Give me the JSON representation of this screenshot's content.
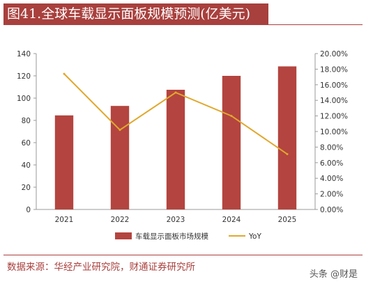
{
  "header": {
    "title": "图41.全球车载显示面板规模预测(亿美元)"
  },
  "footer": {
    "source": "数据来源：华经产业研究院，财通证券研究所",
    "watermark": "头条 @财是"
  },
  "colors": {
    "bar": "#b4443f",
    "line": "#e0a82e",
    "brand": "#a8403d"
  },
  "chart_data": {
    "type": "bar",
    "categories": [
      "2021",
      "2022",
      "2023",
      "2024",
      "2025"
    ],
    "series": [
      {
        "name": "车载显示面板市场规模",
        "type": "bar",
        "axis": "left",
        "values": [
          84.5,
          93,
          107.5,
          120,
          128.5
        ]
      },
      {
        "name": "YoY",
        "type": "line",
        "axis": "right",
        "values": [
          0.174,
          0.102,
          0.15,
          0.12,
          0.071
        ]
      }
    ],
    "ylim": [
      0,
      140
    ],
    "yticks": [
      0,
      20,
      40,
      60,
      80,
      100,
      120,
      140
    ],
    "y2lim": [
      0,
      0.2
    ],
    "y2ticks": [
      "0.00%",
      "2.00%",
      "4.00%",
      "6.00%",
      "8.00%",
      "10.00%",
      "12.00%",
      "14.00%",
      "16.00%",
      "18.00%",
      "20.00%"
    ],
    "grid": false,
    "legend": "bottom"
  }
}
